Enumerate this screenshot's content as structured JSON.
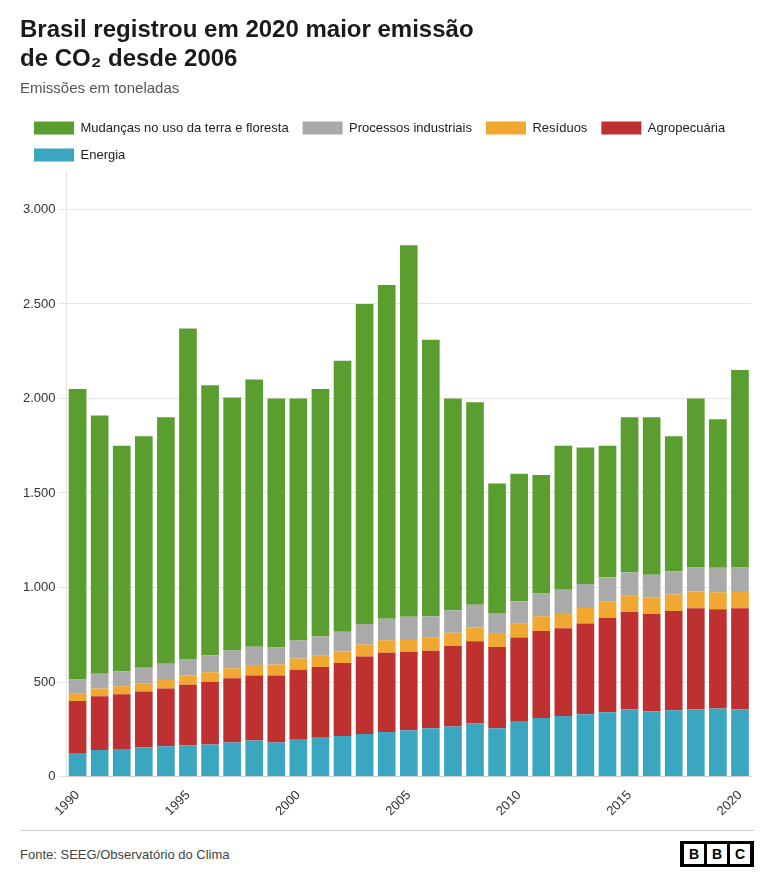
{
  "chart_data": {
    "type": "bar",
    "stacked": true,
    "title": [
      "Brasil registrou em 2020 maior emissão",
      "de CO₂ desde 2006"
    ],
    "subtitle": "Emissões em toneladas",
    "annotations": [
      "Fonte: SEEG/Observatório do Clima",
      "BBC"
    ],
    "categories": [
      "1990",
      null,
      null,
      null,
      null,
      "1995",
      null,
      null,
      null,
      null,
      "2000",
      null,
      null,
      null,
      null,
      "2005",
      null,
      null,
      null,
      null,
      "2010",
      null,
      null,
      null,
      null,
      "2015",
      null,
      null,
      null,
      null,
      "2020"
    ],
    "series": [
      {
        "name": "Energia",
        "color": "#3aa6c0",
        "values": [
          120,
          140,
          145,
          155,
          160,
          165,
          170,
          180,
          190,
          180,
          195,
          205,
          215,
          225,
          235,
          245,
          255,
          265,
          280,
          255,
          290,
          310,
          320,
          330,
          340,
          355,
          345,
          350,
          355,
          360,
          355
        ]
      },
      {
        "name": "Agropecuária",
        "color": "#bf3030",
        "values": [
          280,
          285,
          290,
          295,
          305,
          320,
          330,
          340,
          345,
          355,
          370,
          375,
          385,
          410,
          420,
          415,
          410,
          425,
          435,
          430,
          445,
          460,
          465,
          480,
          500,
          515,
          515,
          525,
          535,
          525,
          535
        ]
      },
      {
        "name": "Resíduos",
        "color": "#f0a830",
        "values": [
          38,
          40,
          42,
          44,
          46,
          49,
          51,
          53,
          55,
          57,
          59,
          61,
          62,
          64,
          66,
          68,
          69,
          71,
          73,
          74,
          76,
          78,
          80,
          82,
          84,
          86,
          87,
          88,
          89,
          90,
          91
        ]
      },
      {
        "name": "Processos industriais",
        "color": "#aaaaaa",
        "values": [
          75,
          78,
          80,
          82,
          85,
          88,
          91,
          94,
          96,
          91,
          96,
          100,
          104,
          108,
          113,
          117,
          114,
          118,
          120,
          106,
          116,
          120,
          123,
          127,
          130,
          125,
          120,
          123,
          127,
          130,
          125
        ]
      },
      {
        "name": "Mudanças no uso da terra e floresta",
        "color": "#5a9e2f",
        "values": [
          1537,
          1367,
          1193,
          1224,
          1304,
          1748,
          1428,
          1338,
          1414,
          1317,
          1280,
          1309,
          1434,
          1693,
          1766,
          1965,
          1462,
          1121,
          1072,
          685,
          675,
          627,
          762,
          721,
          696,
          819,
          833,
          714,
          894,
          785,
          1044
        ]
      }
    ],
    "ylim": [
      0,
      3200
    ],
    "yticks": [
      0,
      500,
      {
        "value": 1000,
        "label": "1.000"
      },
      {
        "value": 1500,
        "label": "1.500"
      },
      {
        "value": 2000,
        "label": "2.000"
      },
      {
        "value": 2500,
        "label": "2.500"
      },
      {
        "value": 3000,
        "label": "3.000"
      }
    ],
    "grid": true,
    "legend": "top"
  }
}
